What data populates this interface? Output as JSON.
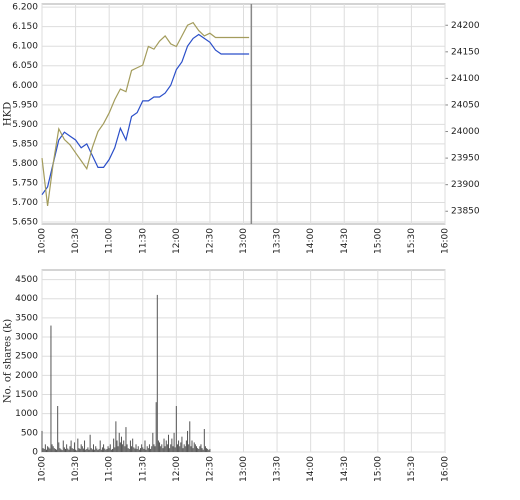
{
  "chart_data": [
    {
      "type": "line",
      "y_label": "HKD",
      "xlim": [
        600,
        960
      ],
      "xticks": [
        {
          "value": 600,
          "label": "10:00"
        },
        {
          "value": 630,
          "label": "10:30"
        },
        {
          "value": 660,
          "label": "11:00"
        },
        {
          "value": 690,
          "label": "11:30"
        },
        {
          "value": 720,
          "label": "12:00"
        },
        {
          "value": 750,
          "label": "12:30"
        },
        {
          "value": 780,
          "label": "13:00"
        },
        {
          "value": 810,
          "label": "13:30"
        },
        {
          "value": 840,
          "label": "14:00"
        },
        {
          "value": 870,
          "label": "14:30"
        },
        {
          "value": 900,
          "label": "15:00"
        },
        {
          "value": 930,
          "label": "15:30"
        },
        {
          "value": 960,
          "label": "16:00"
        }
      ],
      "ylim": [
        5.645,
        6.208
      ],
      "yticks": [
        {
          "value": 5.65,
          "label": "5.650"
        },
        {
          "value": 5.7,
          "label": "5.700"
        },
        {
          "value": 5.75,
          "label": "5.750"
        },
        {
          "value": 5.8,
          "label": "5.800"
        },
        {
          "value": 5.85,
          "label": "5.850"
        },
        {
          "value": 5.9,
          "label": "5.900"
        },
        {
          "value": 5.95,
          "label": "5.950"
        },
        {
          "value": 6.0,
          "label": "6.000"
        },
        {
          "value": 6.05,
          "label": "6.050"
        },
        {
          "value": 6.1,
          "label": "6.100"
        },
        {
          "value": 6.15,
          "label": "6.150"
        },
        {
          "value": 6.2,
          "label": "6.200"
        }
      ],
      "y2lim": [
        23826,
        24240
      ],
      "y2ticks": [
        23850,
        23900,
        23950,
        24000,
        24050,
        24100,
        24150,
        24200
      ],
      "grid": true,
      "marker_x": 787,
      "x": [
        600,
        605,
        610,
        615,
        620,
        625,
        630,
        635,
        640,
        645,
        650,
        655,
        660,
        665,
        670,
        675,
        680,
        685,
        690,
        695,
        700,
        705,
        710,
        715,
        720,
        725,
        730,
        735,
        740,
        745,
        750,
        755,
        760,
        765,
        770,
        775,
        780,
        785
      ],
      "series": [
        {
          "color": "#2b4fc9",
          "values": [
            5.72,
            5.74,
            5.8,
            5.86,
            5.88,
            5.87,
            5.86,
            5.84,
            5.85,
            5.82,
            5.79,
            5.79,
            5.81,
            5.84,
            5.89,
            5.86,
            5.92,
            5.93,
            5.96,
            5.96,
            5.97,
            5.97,
            5.98,
            6.0,
            6.04,
            6.06,
            6.1,
            6.12,
            6.13,
            6.12,
            6.11,
            6.09,
            6.08,
            6.08,
            6.08,
            6.08,
            6.08,
            6.08
          ]
        },
        {
          "color": "#a39c5c",
          "axis": "y2",
          "values": [
            23950,
            23860,
            23940,
            24005,
            23985,
            23975,
            23960,
            23945,
            23930,
            23970,
            24000,
            24015,
            24035,
            24060,
            24080,
            24075,
            24115,
            24120,
            24125,
            24160,
            24155,
            24170,
            24180,
            24165,
            24160,
            24180,
            24200,
            24205,
            24190,
            24180,
            24185,
            24177,
            24177,
            24177,
            24177,
            24177,
            24177,
            24177
          ]
        }
      ]
    },
    {
      "type": "bar",
      "y_label": "No. of shares (k)",
      "xlim": [
        600,
        960
      ],
      "xticks": [
        {
          "value": 600,
          "label": "10:00"
        },
        {
          "value": 630,
          "label": "10:30"
        },
        {
          "value": 660,
          "label": "11:00"
        },
        {
          "value": 690,
          "label": "11:30"
        },
        {
          "value": 720,
          "label": "12:00"
        },
        {
          "value": 750,
          "label": "12:30"
        },
        {
          "value": 780,
          "label": "13:00"
        },
        {
          "value": 810,
          "label": "13:30"
        },
        {
          "value": 840,
          "label": "14:00"
        },
        {
          "value": 870,
          "label": "14:30"
        },
        {
          "value": 900,
          "label": "15:00"
        },
        {
          "value": 930,
          "label": "15:30"
        },
        {
          "value": 960,
          "label": "16:00"
        }
      ],
      "ylim": [
        0,
        4750
      ],
      "yticks": [
        0,
        500,
        1000,
        1500,
        2000,
        2500,
        3000,
        3500,
        4000,
        4500
      ],
      "grid": true,
      "color": "#555555",
      "x": [
        600,
        601,
        602,
        603,
        604,
        605,
        606,
        607,
        608,
        609,
        610,
        611,
        612,
        613,
        614,
        615,
        616,
        617,
        618,
        619,
        620,
        621,
        622,
        623,
        624,
        625,
        626,
        627,
        628,
        629,
        630,
        631,
        632,
        633,
        634,
        635,
        636,
        637,
        638,
        639,
        640,
        641,
        642,
        643,
        644,
        645,
        646,
        647,
        648,
        649,
        650,
        651,
        652,
        653,
        654,
        655,
        656,
        657,
        658,
        659,
        660,
        661,
        662,
        663,
        664,
        665,
        666,
        667,
        668,
        669,
        670,
        671,
        672,
        673,
        674,
        675,
        676,
        677,
        678,
        679,
        680,
        681,
        682,
        683,
        684,
        685,
        686,
        687,
        688,
        689,
        690,
        691,
        692,
        693,
        694,
        695,
        696,
        697,
        698,
        699,
        700,
        701,
        702,
        703,
        704,
        705,
        706,
        707,
        708,
        709,
        710,
        711,
        712,
        713,
        714,
        715,
        716,
        717,
        718,
        719,
        720,
        721,
        722,
        723,
        724,
        725,
        726,
        727,
        728,
        729,
        730,
        731,
        732,
        733,
        734,
        735,
        736,
        737,
        738,
        739,
        740,
        741,
        742,
        743,
        744,
        745,
        746,
        747,
        748,
        749,
        750
      ],
      "values": [
        550,
        100,
        80,
        200,
        60,
        150,
        120,
        90,
        3300,
        200,
        150,
        100,
        80,
        60,
        1200,
        250,
        100,
        70,
        50,
        300,
        120,
        80,
        200,
        90,
        60,
        150,
        300,
        100,
        80,
        250,
        60,
        40,
        350,
        100,
        80,
        200,
        150,
        90,
        300,
        60,
        80,
        120,
        60,
        450,
        100,
        70,
        200,
        60,
        150,
        90,
        50,
        80,
        300,
        60,
        120,
        200,
        90,
        60,
        80,
        150,
        100,
        200,
        60,
        80,
        350,
        120,
        800,
        300,
        150,
        500,
        250,
        400,
        200,
        300,
        150,
        650,
        200,
        100,
        80,
        300,
        150,
        350,
        120,
        90,
        200,
        80,
        150,
        60,
        100,
        200,
        120,
        80,
        300,
        60,
        150,
        100,
        200,
        80,
        150,
        500,
        200,
        150,
        1300,
        4100,
        300,
        250,
        150,
        200,
        100,
        350,
        150,
        300,
        200,
        450,
        100,
        200,
        350,
        150,
        500,
        120,
        1200,
        200,
        300,
        150,
        250,
        400,
        100,
        200,
        150,
        300,
        550,
        200,
        800,
        150,
        300,
        100,
        250,
        200,
        150,
        100,
        80,
        150,
        200,
        100,
        60,
        600,
        150,
        100,
        80,
        50,
        80
      ]
    }
  ]
}
